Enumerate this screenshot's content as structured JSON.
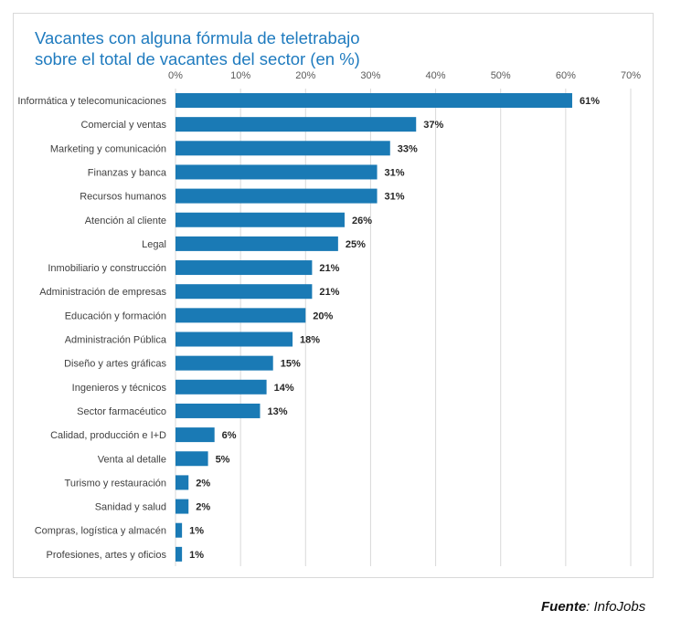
{
  "chart_data": {
    "type": "bar",
    "orientation": "horizontal",
    "title_lines": [
      "Vacantes con alguna fórmula de teletrabajo",
      "sobre el total de vacantes del sector (en %)"
    ],
    "categories": [
      "Informática y telecomunicaciones",
      "Comercial y ventas",
      "Marketing y comunicación",
      "Finanzas y banca",
      "Recursos humanos",
      "Atención al cliente",
      "Legal",
      "Inmobiliario y construcción",
      "Administración de empresas",
      "Educación y formación",
      "Administración Pública",
      "Diseño y artes gráficas",
      "Ingenieros y técnicos",
      "Sector farmacéutico",
      "Calidad, producción e I+D",
      "Venta al detalle",
      "Turismo y restauración",
      "Sanidad y salud",
      "Compras, logística y almacén",
      "Profesiones, artes y oficios"
    ],
    "values": [
      61,
      37,
      33,
      31,
      31,
      26,
      25,
      21,
      21,
      20,
      18,
      15,
      14,
      13,
      6,
      5,
      2,
      2,
      1,
      1
    ],
    "data_labels": [
      "61%",
      "37%",
      "33%",
      "31%",
      "31%",
      "26%",
      "25%",
      "21%",
      "21%",
      "20%",
      "18%",
      "15%",
      "14%",
      "13%",
      "6%",
      "5%",
      "2%",
      "2%",
      "1%",
      "1%"
    ],
    "xlim": [
      0,
      70
    ],
    "xticks": [
      "0%",
      "10%",
      "20%",
      "30%",
      "40%",
      "50%",
      "60%",
      "70%"
    ],
    "grid": true,
    "bar_color": "#1a7ab5",
    "axis_position": "top"
  },
  "source": {
    "label": "Fuente",
    "value": "InfoJobs"
  }
}
